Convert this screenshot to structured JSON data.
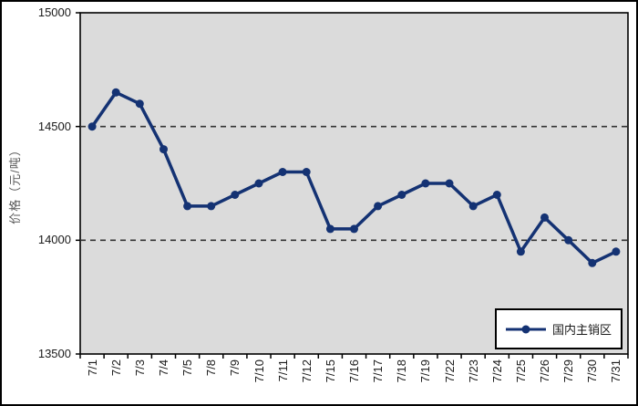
{
  "window": {
    "background": "#ffffff",
    "border_color": "#000000"
  },
  "chart_data": {
    "type": "line",
    "title": "",
    "ylabel": "价格（元/吨）",
    "xlabel": "",
    "categories": [
      "7/1",
      "7/2",
      "7/3",
      "7/4",
      "7/5",
      "7/8",
      "7/9",
      "7/10",
      "7/11",
      "7/12",
      "7/15",
      "7/16",
      "7/17",
      "7/18",
      "7/19",
      "7/22",
      "7/23",
      "7/24",
      "7/25",
      "7/26",
      "7/29",
      "7/30",
      "7/31"
    ],
    "series": [
      {
        "name": "国内主销区",
        "color": "#143273",
        "values": [
          14500,
          14650,
          14600,
          14400,
          14150,
          14150,
          14200,
          14250,
          14300,
          14300,
          14050,
          14050,
          14150,
          14200,
          14250,
          14250,
          14150,
          14200,
          13950,
          14100,
          14000,
          13900,
          13950
        ]
      }
    ],
    "ylim": [
      13500,
      15000
    ],
    "yticks": [
      13500,
      14000,
      14500,
      15000
    ],
    "gridlines": {
      "at": [
        14000,
        14500
      ],
      "style": "dashed",
      "color": "#333333"
    },
    "plot_bg": "#dbdbdb",
    "axis_color": "#000000",
    "legend_position": "inside-bottom-right",
    "grid": "major-horizontal-only"
  }
}
